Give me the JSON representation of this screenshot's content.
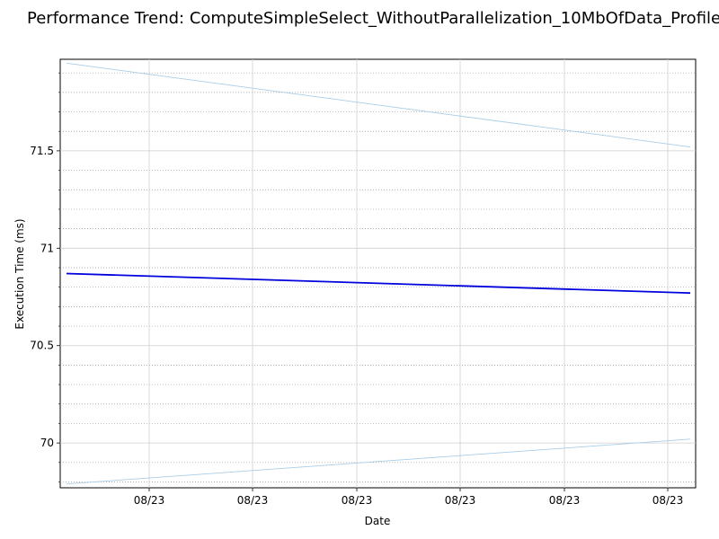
{
  "chart_data": {
    "type": "line",
    "title": "Performance Trend: ComputeSimpleSelect_WithoutParallelization_10MbOfData_Profile",
    "xlabel": "Date",
    "ylabel": "Execution Time (ms)",
    "x_tick_labels": [
      "08/23",
      "08/23",
      "08/23",
      "08/23",
      "08/23",
      "08/23"
    ],
    "ylim": [
      69.77,
      71.97
    ],
    "y_ticks": [
      70,
      70.5,
      71,
      71.5
    ],
    "y_tick_labels": [
      "70",
      "70.5",
      "71",
      "71.5"
    ],
    "grid": true,
    "series": [
      {
        "role": "trend",
        "color": "#0000dd",
        "values": [
          70.87,
          70.77
        ]
      },
      {
        "role": "upper-band",
        "color": "#a8cde8",
        "values": [
          71.95,
          71.52
        ]
      },
      {
        "role": "lower-band",
        "color": "#a8cde8",
        "values": [
          69.79,
          70.02
        ]
      }
    ]
  }
}
